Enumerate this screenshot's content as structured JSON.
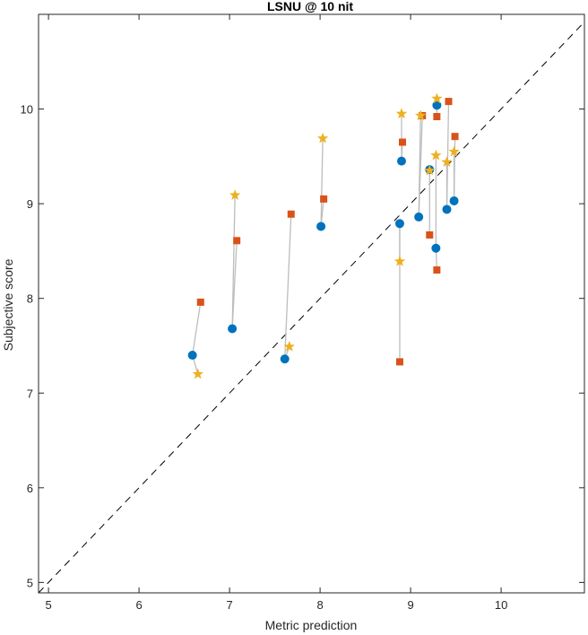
{
  "chart_data": {
    "type": "scatter",
    "title": "LSNU @ 10 nit",
    "xlabel": "Metric prediction",
    "ylabel": "Subjective score",
    "xlim": [
      4.89,
      10.92
    ],
    "ylim": [
      4.89,
      11.0
    ],
    "xticks": [
      5,
      6,
      7,
      8,
      9,
      10
    ],
    "yticks": [
      5,
      6,
      7,
      8,
      9,
      10
    ],
    "grid": false,
    "reference_line": "y = x (dashed)",
    "colors": {
      "circle": "#0072BD",
      "square": "#D95319",
      "star": "#EDB120",
      "connector": "#BDBDBD"
    },
    "groups": [
      {
        "circle": [
          6.59,
          7.4
        ],
        "square": [
          6.68,
          7.96
        ],
        "star": [
          6.65,
          7.2
        ]
      },
      {
        "circle": [
          7.03,
          7.68
        ],
        "square": [
          7.08,
          8.61
        ],
        "star": [
          7.06,
          9.09
        ]
      },
      {
        "circle": [
          7.61,
          7.36
        ],
        "square": [
          7.68,
          8.89
        ],
        "star": [
          7.66,
          7.49
        ]
      },
      {
        "circle": [
          8.01,
          8.76
        ],
        "square": [
          8.04,
          9.05
        ],
        "star": [
          8.03,
          9.69
        ]
      },
      {
        "circle": [
          8.88,
          8.79
        ],
        "square": [
          8.88,
          7.33
        ],
        "star": [
          8.88,
          8.39
        ]
      },
      {
        "circle": [
          8.9,
          9.45
        ],
        "square": [
          8.91,
          9.65
        ],
        "star": [
          8.9,
          9.95
        ]
      },
      {
        "circle": [
          9.09,
          8.86
        ],
        "square": [
          9.13,
          9.93
        ],
        "star": [
          9.11,
          9.93
        ]
      },
      {
        "circle": [
          9.21,
          9.36
        ],
        "square": [
          9.21,
          8.67
        ],
        "star": [
          9.21,
          9.35
        ]
      },
      {
        "circle": [
          9.28,
          8.53
        ],
        "square": [
          9.29,
          8.3
        ],
        "star": [
          9.28,
          9.51
        ]
      },
      {
        "circle": [
          9.29,
          10.04
        ],
        "square": [
          9.29,
          9.92
        ],
        "star": [
          9.29,
          10.11
        ]
      },
      {
        "circle": [
          9.4,
          8.94
        ],
        "square": [
          9.42,
          10.08
        ],
        "star": [
          9.4,
          9.44
        ]
      },
      {
        "circle": [
          9.48,
          9.03
        ],
        "square": [
          9.49,
          9.71
        ],
        "star": [
          9.48,
          9.55
        ]
      }
    ]
  }
}
